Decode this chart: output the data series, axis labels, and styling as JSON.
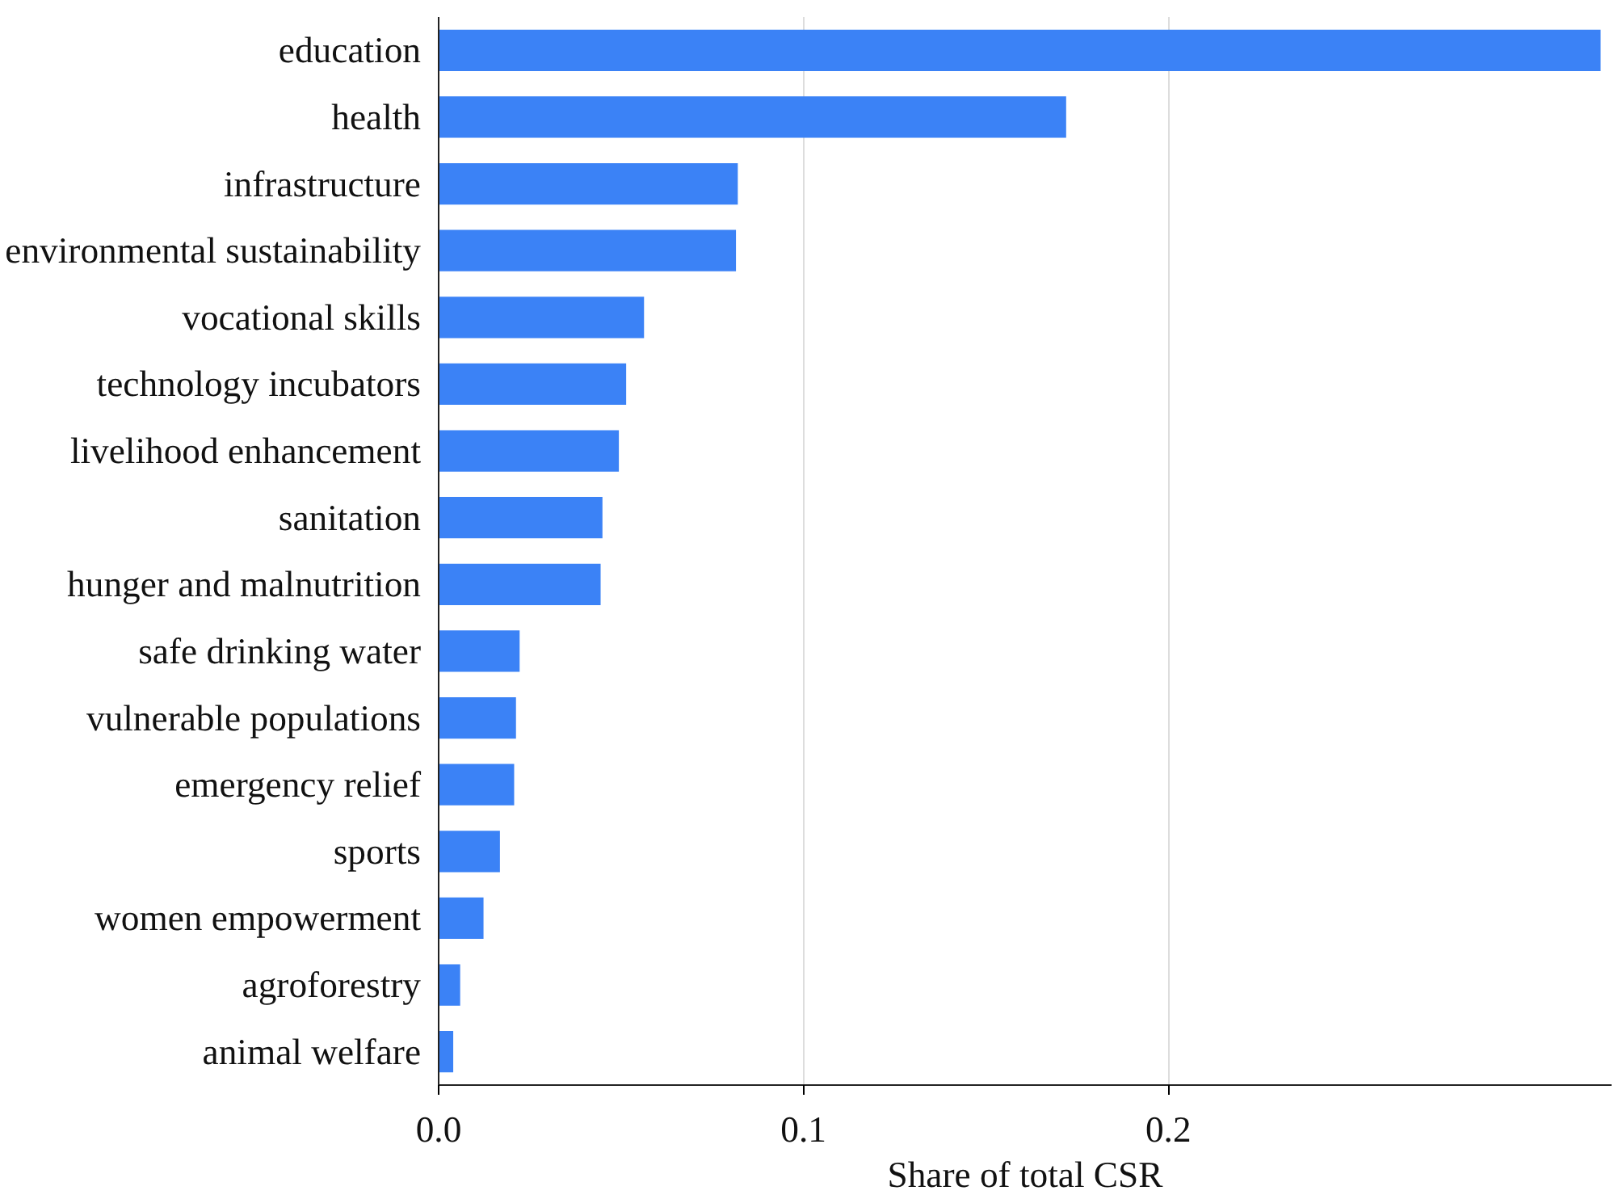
{
  "chart_data": {
    "type": "bar",
    "orientation": "horizontal",
    "xlabel": "Share of total CSR",
    "categories": [
      "education",
      "health",
      "infrastructure",
      "environmental sustainability",
      "vocational skills",
      "technology incubators",
      "livelihood enhancement",
      "sanitation",
      "hunger and malnutrition",
      "safe drinking water",
      "vulnerable populations",
      "emergency relief",
      "sports",
      "women empowerment",
      "agroforestry",
      "animal welfare"
    ],
    "values": [
      0.3185,
      0.172,
      0.082,
      0.0815,
      0.0563,
      0.0514,
      0.0494,
      0.0449,
      0.0444,
      0.0222,
      0.0212,
      0.0207,
      0.0168,
      0.0123,
      0.0059,
      0.004
    ],
    "color": "#3b82f6",
    "xlim": [
      0,
      0.3215
    ],
    "xticks": [
      {
        "value": 0,
        "label": "0.0"
      },
      0.1,
      0.2
    ],
    "grid": "x"
  }
}
